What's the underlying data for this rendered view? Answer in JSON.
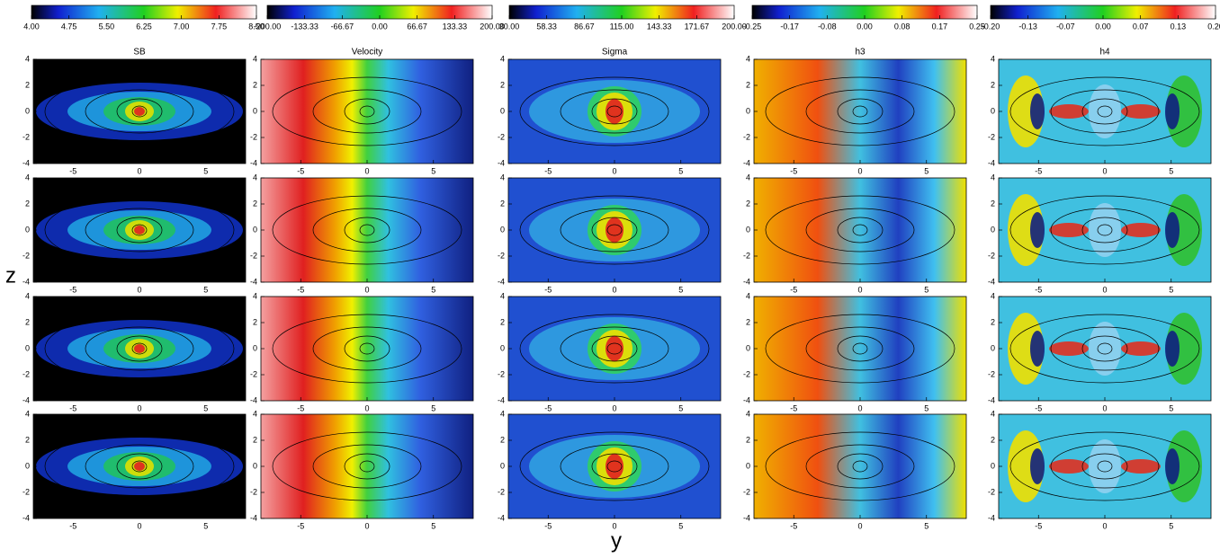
{
  "colorbars": [
    {
      "ticks": [
        "4.00",
        "4.75",
        "5.50",
        "6.25",
        "7.00",
        "7.75",
        "8.50"
      ]
    },
    {
      "ticks": [
        "-200.00",
        "-133.33",
        "-66.67",
        "0.00",
        "66.67",
        "133.33",
        "200.00"
      ]
    },
    {
      "ticks": [
        "30.00",
        "58.33",
        "86.67",
        "115.00",
        "143.33",
        "171.67",
        "200.00"
      ]
    },
    {
      "ticks": [
        "-0.25",
        "-0.17",
        "-0.08",
        "0.00",
        "0.08",
        "0.17",
        "0.25"
      ]
    },
    {
      "ticks": [
        "-0.20",
        "-0.13",
        "-0.07",
        "0.00",
        "0.07",
        "0.13",
        "0.20"
      ]
    }
  ],
  "panels": [
    {
      "title": "SB"
    },
    {
      "title": "Velocity"
    },
    {
      "title": "Sigma"
    },
    {
      "title": "h3"
    },
    {
      "title": "h4"
    }
  ],
  "axes": {
    "x_label": "y",
    "y_label": "z",
    "xticks": [
      "-5",
      "0",
      "5"
    ],
    "yticks": [
      "4",
      "2",
      "0",
      "-2",
      "-4"
    ]
  }
}
